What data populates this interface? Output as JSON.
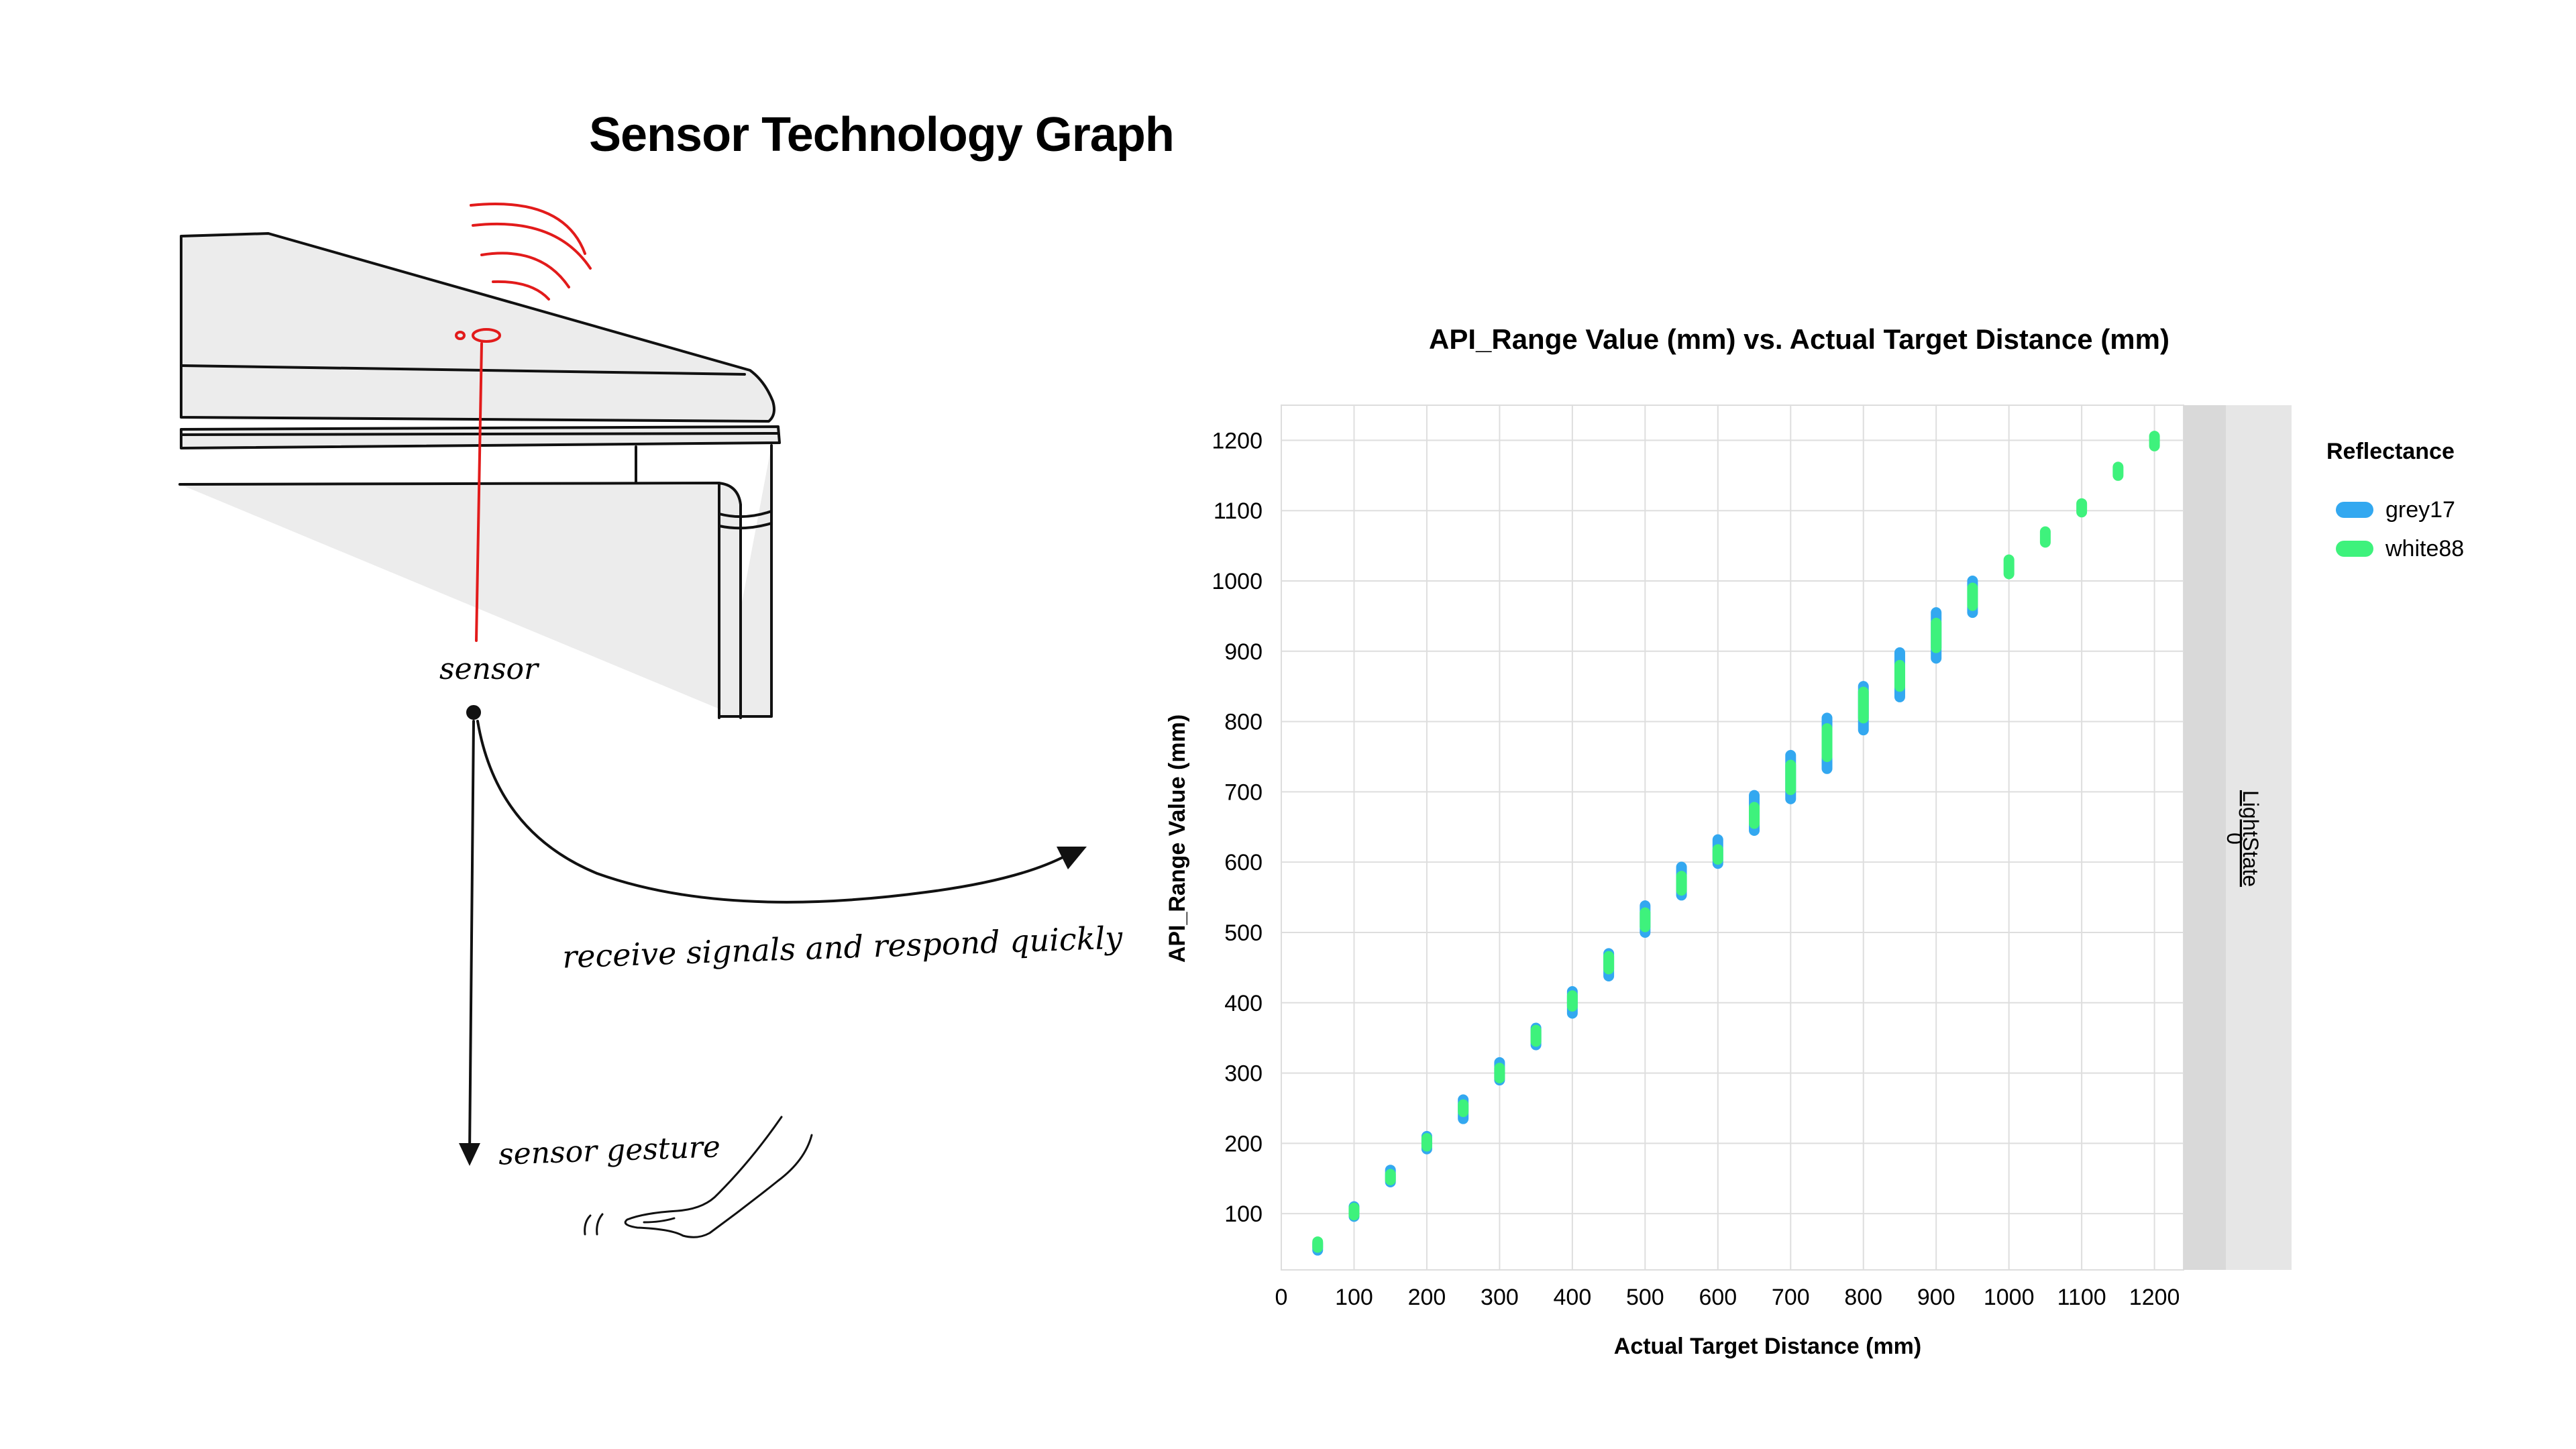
{
  "page": {
    "title": "Sensor Technology Graph"
  },
  "illustration": {
    "sensor_label": "sensor",
    "signals_label": "receive signals and respond quickly",
    "gesture_label": "sensor gesture",
    "colors": {
      "line": "#111111",
      "signal": "#e21b1b",
      "table_fill": "#ececec"
    }
  },
  "legend": {
    "title": "Reflectance",
    "items": [
      {
        "label": "grey17",
        "color": "#33a8f0"
      },
      {
        "label": "white88",
        "color": "#3ef27c"
      }
    ]
  },
  "chart_data": {
    "type": "scatter",
    "title": "API_Range Value (mm) vs. Actual Target Distance (mm)",
    "xlabel": "Actual Target Distance (mm)",
    "ylabel": "API_Range Value (mm)",
    "xlim": [
      0,
      1240
    ],
    "ylim": [
      20,
      1250
    ],
    "xticks": [
      0,
      100,
      200,
      300,
      400,
      500,
      600,
      700,
      800,
      900,
      1000,
      1100,
      1200
    ],
    "yticks": [
      100,
      200,
      300,
      400,
      500,
      600,
      700,
      800,
      900,
      1000,
      1100,
      1200
    ],
    "grid": true,
    "legend_placement": "right",
    "facet": {
      "label": "LightState",
      "value": "0"
    },
    "series": [
      {
        "name": "grey17",
        "color": "#33a8f0",
        "x": [
          50,
          100,
          150,
          200,
          250,
          300,
          350,
          400,
          450,
          500,
          550,
          600,
          650,
          700,
          750,
          800,
          850,
          900,
          950
        ],
        "y_min": [
          48,
          96,
          145,
          192,
          235,
          290,
          340,
          385,
          438,
          500,
          553,
          598,
          645,
          690,
          733,
          788,
          835,
          890,
          955
        ],
        "y_max": [
          58,
          110,
          162,
          210,
          262,
          315,
          364,
          416,
          470,
          538,
          593,
          632,
          695,
          752,
          805,
          850,
          898,
          955,
          1000
        ]
      },
      {
        "name": "white88",
        "color": "#3ef27c",
        "x": [
          50,
          100,
          150,
          200,
          250,
          300,
          350,
          400,
          450,
          500,
          550,
          600,
          650,
          700,
          750,
          800,
          850,
          900,
          950,
          1000,
          1050,
          1100,
          1150,
          1200
        ],
        "y_min": [
          52,
          98,
          148,
          196,
          245,
          293,
          345,
          395,
          448,
          508,
          560,
          604,
          655,
          703,
          750,
          805,
          850,
          905,
          965,
          1010,
          1055,
          1098,
          1150,
          1192
        ],
        "y_max": [
          60,
          108,
          156,
          207,
          255,
          307,
          361,
          410,
          466,
          528,
          580,
          618,
          678,
          738,
          790,
          842,
          880,
          940,
          990,
          1030,
          1070,
          1110,
          1162,
          1206
        ]
      }
    ]
  }
}
